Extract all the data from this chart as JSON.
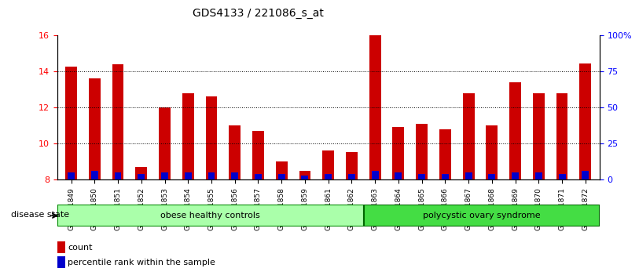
{
  "title": "GDS4133 / 221086_s_at",
  "samples": [
    "GSM201849",
    "GSM201850",
    "GSM201851",
    "GSM201852",
    "GSM201853",
    "GSM201854",
    "GSM201855",
    "GSM201856",
    "GSM201857",
    "GSM201858",
    "GSM201859",
    "GSM201861",
    "GSM201862",
    "GSM201863",
    "GSM201864",
    "GSM201865",
    "GSM201866",
    "GSM201867",
    "GSM201868",
    "GSM201869",
    "GSM201870",
    "GSM201871",
    "GSM201872"
  ],
  "count_values": [
    14.25,
    13.6,
    14.4,
    8.7,
    12.0,
    12.8,
    12.6,
    11.0,
    10.7,
    9.0,
    8.5,
    9.6,
    9.55,
    16.0,
    10.9,
    11.1,
    10.8,
    12.8,
    11.0,
    13.4,
    12.8,
    12.8,
    14.45
  ],
  "percentile_values": [
    5,
    6,
    5,
    4,
    5,
    5,
    5,
    5,
    4,
    4,
    3,
    4,
    4,
    6,
    5,
    4,
    4,
    5,
    4,
    5,
    5,
    4,
    6
  ],
  "group1_label": "obese healthy controls",
  "group2_label": "polycystic ovary syndrome",
  "group1_count": 13,
  "group2_count": 10,
  "ylim_left": [
    8,
    16
  ],
  "ylim_right": [
    0,
    100
  ],
  "yticks_left": [
    8,
    10,
    12,
    14,
    16
  ],
  "yticks_right": [
    0,
    25,
    50,
    75,
    100
  ],
  "ytick_labels_right": [
    "0",
    "25",
    "50",
    "75",
    "100%"
  ],
  "bar_color": "#CC0000",
  "percentile_color": "#0000CC",
  "bg_color": "#CCCCCC",
  "group1_bg": "#AAFFAA",
  "group2_bg": "#44DD44",
  "bar_width": 0.5,
  "baseline": 8.0
}
